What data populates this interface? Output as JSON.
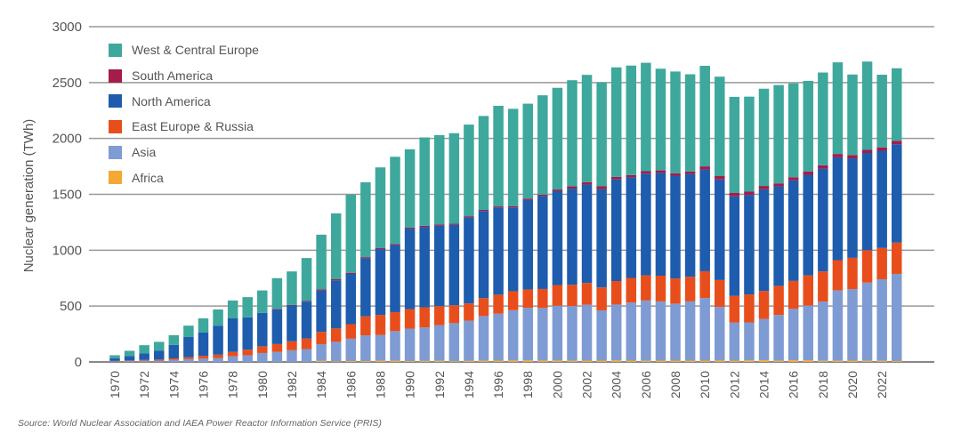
{
  "chart_data": {
    "type": "bar",
    "stacked": true,
    "title": "",
    "xlabel": "",
    "ylabel": "Nuclear generation (TWh)",
    "ylim": [
      0,
      3000
    ],
    "yticks": [
      0,
      500,
      1000,
      1500,
      2000,
      2500,
      3000
    ],
    "grid": true,
    "legend_position": "top-left",
    "categories": [
      1970,
      1971,
      1972,
      1973,
      1974,
      1975,
      1976,
      1977,
      1978,
      1979,
      1980,
      1981,
      1982,
      1983,
      1984,
      1985,
      1986,
      1987,
      1988,
      1989,
      1990,
      1991,
      1992,
      1993,
      1994,
      1995,
      1996,
      1997,
      1998,
      1999,
      2000,
      2001,
      2002,
      2003,
      2004,
      2005,
      2006,
      2007,
      2008,
      2009,
      2010,
      2011,
      2012,
      2013,
      2014,
      2015,
      2016,
      2017,
      2018,
      2019,
      2020,
      2021,
      2022,
      2023
    ],
    "xtick_labels": [
      "1970",
      "1972",
      "1974",
      "1976",
      "1978",
      "1980",
      "1982",
      "1984",
      "1986",
      "1988",
      "1990",
      "1992",
      "1994",
      "1996",
      "1998",
      "2000",
      "2002",
      "2004",
      "2006",
      "2008",
      "2010",
      "2012",
      "2014",
      "2016",
      "2018",
      "2020",
      "2022"
    ],
    "series": [
      {
        "name": "Africa",
        "color": "#f5a833",
        "values": [
          0,
          0,
          0,
          0,
          0,
          0,
          0,
          0,
          0,
          0,
          0,
          0,
          0,
          0,
          9,
          5,
          8,
          8,
          11,
          11,
          8,
          9,
          10,
          7,
          9,
          11,
          12,
          13,
          14,
          13,
          13,
          11,
          12,
          12,
          14,
          12,
          10,
          12,
          12,
          12,
          12,
          13,
          12,
          14,
          15,
          11,
          15,
          15,
          10,
          11,
          12,
          10,
          10,
          8
        ]
      },
      {
        "name": "Asia",
        "color": "#7f9bd3",
        "values": [
          5,
          8,
          10,
          12,
          18,
          25,
          30,
          35,
          50,
          60,
          80,
          90,
          105,
          115,
          150,
          175,
          200,
          230,
          230,
          265,
          290,
          300,
          320,
          340,
          360,
          400,
          420,
          450,
          470,
          470,
          490,
          490,
          500,
          450,
          500,
          520,
          540,
          530,
          510,
          530,
          560,
          480,
          340,
          340,
          370,
          410,
          460,
          490,
          530,
          630,
          640,
          700,
          730,
          780
        ]
      },
      {
        "name": "East Europe & Russia",
        "color": "#e84e1b",
        "values": [
          4,
          6,
          8,
          10,
          14,
          18,
          25,
          30,
          40,
          50,
          60,
          70,
          80,
          95,
          110,
          120,
          130,
          170,
          180,
          170,
          175,
          180,
          170,
          160,
          155,
          160,
          170,
          170,
          165,
          170,
          185,
          190,
          195,
          205,
          210,
          220,
          225,
          230,
          225,
          220,
          240,
          240,
          240,
          250,
          250,
          260,
          250,
          270,
          270,
          270,
          280,
          290,
          280,
          280
        ]
      },
      {
        "name": "North America",
        "color": "#1e5cae",
        "values": [
          25,
          40,
          60,
          80,
          120,
          180,
          210,
          260,
          300,
          290,
          300,
          310,
          320,
          330,
          370,
          430,
          450,
          520,
          590,
          600,
          720,
          720,
          720,
          720,
          770,
          780,
          780,
          750,
          800,
          830,
          840,
          860,
          880,
          880,
          910,
          900,
          910,
          920,
          920,
          920,
          910,
          900,
          890,
          890,
          910,
          890,
          900,
          900,
          920,
          920,
          890,
          870,
          870,
          880
        ]
      },
      {
        "name": "South America",
        "color": "#a51c4b",
        "values": [
          0,
          0,
          0,
          0,
          0,
          0,
          0,
          0,
          0,
          0,
          0,
          5,
          5,
          5,
          10,
          10,
          10,
          10,
          10,
          10,
          10,
          10,
          10,
          10,
          10,
          10,
          10,
          12,
          12,
          13,
          15,
          20,
          22,
          25,
          22,
          20,
          22,
          22,
          22,
          22,
          28,
          30,
          30,
          30,
          30,
          27,
          28,
          30,
          30,
          30,
          30,
          28,
          30,
          30
        ]
      },
      {
        "name": "West & Central Europe",
        "color": "#3ea89d",
        "values": [
          26,
          46,
          72,
          78,
          88,
          102,
          125,
          145,
          160,
          180,
          200,
          275,
          300,
          385,
          490,
          590,
          700,
          670,
          720,
          780,
          700,
          790,
          800,
          810,
          820,
          840,
          900,
          870,
          850,
          890,
          910,
          950,
          960,
          930,
          980,
          980,
          970,
          910,
          910,
          870,
          900,
          890,
          860,
          850,
          870,
          880,
          840,
          810,
          830,
          820,
          720,
          790,
          650,
          650
        ]
      }
    ]
  },
  "source": "Source: World Nuclear Association and IAEA Power Reactor Information Service (PRIS)"
}
